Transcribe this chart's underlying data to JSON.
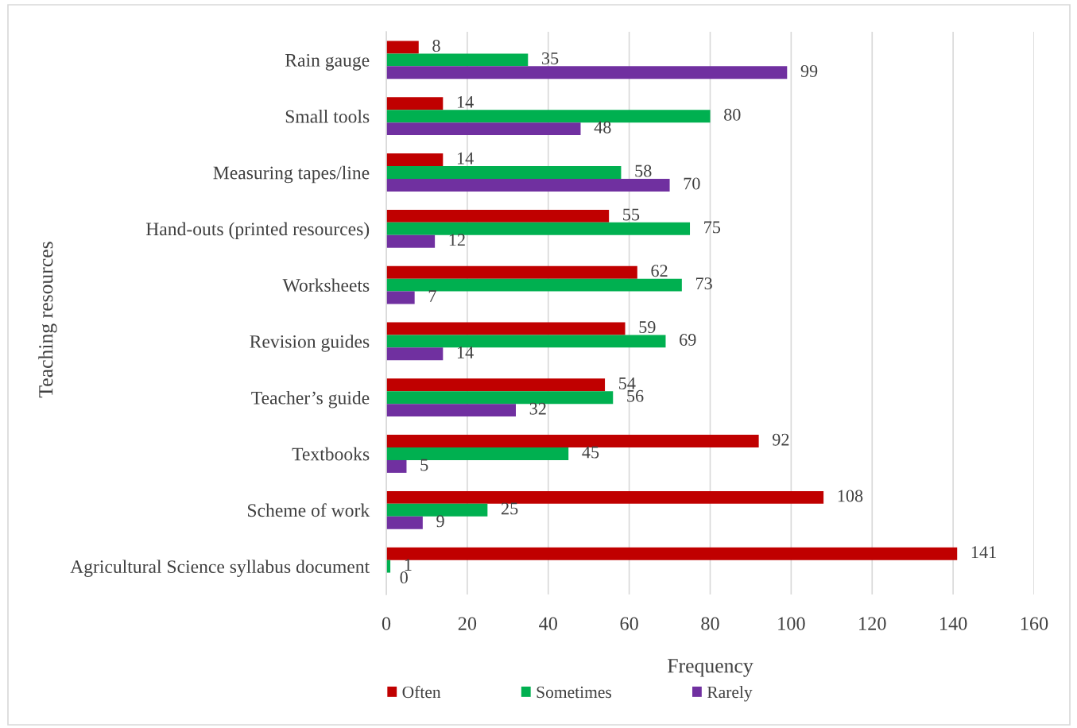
{
  "chart_data": {
    "type": "bar",
    "orientation": "horizontal",
    "xlabel": "Frequency",
    "ylabel": "Teaching resources",
    "categories": [
      "Rain gauge",
      "Small tools",
      "Measuring tapes/line",
      "Hand-outs (printed resources)",
      "Worksheets",
      "Revision guides",
      "Teacher’s guide",
      "Textbooks",
      "Scheme of work",
      "Agricultural Science syllabus document"
    ],
    "series": [
      {
        "name": "Often",
        "color": "#c00000",
        "values": [
          8,
          14,
          14,
          55,
          62,
          59,
          54,
          92,
          108,
          141
        ]
      },
      {
        "name": "Sometimes",
        "color": "#00b050",
        "values": [
          35,
          80,
          58,
          75,
          73,
          69,
          56,
          45,
          25,
          1
        ]
      },
      {
        "name": "Rarely",
        "color": "#7030a0",
        "values": [
          99,
          48,
          70,
          12,
          7,
          14,
          32,
          5,
          9,
          0
        ]
      }
    ],
    "xlim": [
      0,
      160
    ],
    "xticks": [
      0,
      20,
      40,
      60,
      80,
      100,
      120,
      140,
      160
    ],
    "grid": "x",
    "legend": "bottom",
    "data_labels": true
  }
}
